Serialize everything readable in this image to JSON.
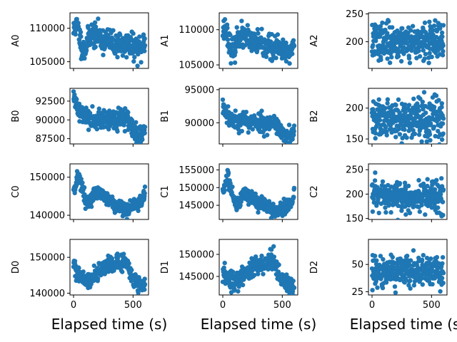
{
  "colors": {
    "marker": "#1f77b4",
    "axes": "#000000",
    "background": "#ffffff"
  },
  "chart_data": [
    {
      "type": "scatter",
      "ylabel": "A0",
      "yticks": [
        105000,
        110000
      ],
      "ylim": [
        104000,
        112300
      ],
      "xlim": [
        -30,
        630
      ],
      "profile": [
        [
          0,
          109500
        ],
        [
          20,
          110500
        ],
        [
          40,
          109800
        ],
        [
          60,
          108000
        ],
        [
          80,
          106500
        ],
        [
          100,
          107000
        ],
        [
          120,
          108200
        ],
        [
          150,
          109300
        ],
        [
          180,
          108700
        ],
        [
          210,
          109000
        ],
        [
          240,
          108200
        ],
        [
          270,
          108300
        ],
        [
          300,
          108000
        ],
        [
          330,
          107700
        ],
        [
          360,
          107600
        ],
        [
          390,
          107900
        ],
        [
          420,
          107000
        ],
        [
          450,
          107800
        ],
        [
          480,
          107300
        ],
        [
          510,
          107100
        ],
        [
          540,
          106900
        ],
        [
          570,
          106800
        ],
        [
          600,
          108300
        ]
      ],
      "noise": 900,
      "n": 300,
      "seed": 11
    },
    {
      "type": "scatter",
      "ylabel": "A1",
      "yticks": [
        105000,
        110000
      ],
      "ylim": [
        104500,
        112400
      ],
      "xlim": [
        -30,
        630
      ],
      "profile": [
        [
          0,
          110000
        ],
        [
          20,
          110200
        ],
        [
          40,
          109500
        ],
        [
          60,
          107800
        ],
        [
          80,
          106800
        ],
        [
          100,
          107200
        ],
        [
          120,
          108600
        ],
        [
          150,
          109500
        ],
        [
          180,
          108600
        ],
        [
          210,
          109000
        ],
        [
          240,
          108000
        ],
        [
          270,
          108200
        ],
        [
          300,
          108000
        ],
        [
          330,
          107600
        ],
        [
          360,
          107400
        ],
        [
          390,
          107800
        ],
        [
          420,
          107100
        ],
        [
          450,
          107600
        ],
        [
          480,
          107000
        ],
        [
          510,
          106800
        ],
        [
          540,
          106700
        ],
        [
          570,
          106900
        ],
        [
          600,
          108300
        ]
      ],
      "noise": 800,
      "n": 300,
      "seed": 23
    },
    {
      "type": "scatter",
      "ylabel": "A2",
      "yticks": [
        200,
        250
      ],
      "ylim": [
        152,
        252
      ],
      "xlim": [
        -30,
        630
      ],
      "profile": [
        [
          0,
          200
        ],
        [
          600,
          200
        ]
      ],
      "noise": 16,
      "n": 320,
      "seed": 37
    },
    {
      "type": "scatter",
      "ylabel": "B0",
      "yticks": [
        87500,
        90000,
        92500
      ],
      "ylim": [
        86800,
        94200
      ],
      "xlim": [
        -30,
        630
      ],
      "profile": [
        [
          0,
          92700
        ],
        [
          30,
          92000
        ],
        [
          60,
          91000
        ],
        [
          100,
          90500
        ],
        [
          150,
          90200
        ],
        [
          200,
          90300
        ],
        [
          250,
          90000
        ],
        [
          300,
          90100
        ],
        [
          350,
          89800
        ],
        [
          400,
          90000
        ],
        [
          450,
          90200
        ],
        [
          480,
          89500
        ],
        [
          510,
          88500
        ],
        [
          540,
          87800
        ],
        [
          570,
          88000
        ],
        [
          600,
          88800
        ]
      ],
      "noise": 650,
      "n": 300,
      "seed": 41
    },
    {
      "type": "scatter",
      "ylabel": "B1",
      "yticks": [
        90000,
        95000
      ],
      "ylim": [
        86800,
        95200
      ],
      "xlim": [
        -30,
        630
      ],
      "profile": [
        [
          0,
          92500
        ],
        [
          30,
          91800
        ],
        [
          60,
          90800
        ],
        [
          100,
          90300
        ],
        [
          150,
          90300
        ],
        [
          200,
          90200
        ],
        [
          250,
          90000
        ],
        [
          300,
          90200
        ],
        [
          350,
          89900
        ],
        [
          400,
          89900
        ],
        [
          450,
          90000
        ],
        [
          480,
          89000
        ],
        [
          510,
          88000
        ],
        [
          540,
          87700
        ],
        [
          570,
          87800
        ],
        [
          600,
          88600
        ]
      ],
      "noise": 700,
      "n": 300,
      "seed": 53
    },
    {
      "type": "scatter",
      "ylabel": "B2",
      "yticks": [
        150,
        200
      ],
      "ylim": [
        142,
        232
      ],
      "xlim": [
        -30,
        630
      ],
      "profile": [
        [
          0,
          182
        ],
        [
          600,
          184
        ]
      ],
      "noise": 17,
      "n": 320,
      "seed": 61
    },
    {
      "type": "scatter",
      "ylabel": "C0",
      "yticks": [
        140000,
        150000
      ],
      "ylim": [
        138900,
        153500
      ],
      "xlim": [
        -30,
        630
      ],
      "profile": [
        [
          0,
          147000
        ],
        [
          40,
          150000
        ],
        [
          70,
          148000
        ],
        [
          100,
          143500
        ],
        [
          130,
          143000
        ],
        [
          170,
          145500
        ],
        [
          200,
          146000
        ],
        [
          250,
          145000
        ],
        [
          300,
          144000
        ],
        [
          350,
          142800
        ],
        [
          400,
          142000
        ],
        [
          430,
          141500
        ],
        [
          450,
          141200
        ],
        [
          480,
          142000
        ],
        [
          510,
          143000
        ],
        [
          540,
          142800
        ],
        [
          570,
          143500
        ],
        [
          600,
          146000
        ]
      ],
      "noise": 1000,
      "n": 300,
      "seed": 71
    },
    {
      "type": "scatter",
      "ylabel": "C1",
      "yticks": [
        145000,
        150000,
        155000
      ],
      "ylim": [
        141000,
        156700
      ],
      "xlim": [
        -30,
        630
      ],
      "profile": [
        [
          0,
          149000
        ],
        [
          40,
          152500
        ],
        [
          70,
          149500
        ],
        [
          100,
          146000
        ],
        [
          130,
          145500
        ],
        [
          170,
          148500
        ],
        [
          200,
          148500
        ],
        [
          250,
          147000
        ],
        [
          300,
          145500
        ],
        [
          350,
          144800
        ],
        [
          400,
          144200
        ],
        [
          430,
          143800
        ],
        [
          450,
          143700
        ],
        [
          480,
          143900
        ],
        [
          510,
          144500
        ],
        [
          540,
          144500
        ],
        [
          570,
          145500
        ],
        [
          600,
          148000
        ]
      ],
      "noise": 1000,
      "n": 300,
      "seed": 83
    },
    {
      "type": "scatter",
      "ylabel": "C2",
      "yticks": [
        150,
        200,
        250
      ],
      "ylim": [
        148,
        262
      ],
      "xlim": [
        -30,
        630
      ],
      "profile": [
        [
          0,
          195
        ],
        [
          600,
          193
        ]
      ],
      "noise": 16,
      "n": 320,
      "seed": 97
    },
    {
      "type": "scatter",
      "ylabel": "D0",
      "yticks": [
        140000,
        150000
      ],
      "ylim": [
        139500,
        155000
      ],
      "xlim": [
        -30,
        630
      ],
      "profile": [
        [
          0,
          149000
        ],
        [
          20,
          146000
        ],
        [
          50,
          144500
        ],
        [
          100,
          143500
        ],
        [
          150,
          143800
        ],
        [
          180,
          145500
        ],
        [
          220,
          146500
        ],
        [
          260,
          147000
        ],
        [
          290,
          148500
        ],
        [
          320,
          147500
        ],
        [
          350,
          148000
        ],
        [
          400,
          148500
        ],
        [
          430,
          149000
        ],
        [
          460,
          147000
        ],
        [
          490,
          144500
        ],
        [
          520,
          143500
        ],
        [
          550,
          143000
        ],
        [
          580,
          142300
        ],
        [
          600,
          142000
        ]
      ],
      "noise": 1100,
      "n": 300,
      "seed": 101
    },
    {
      "type": "scatter",
      "ylabel": "D1",
      "yticks": [
        145000,
        150000
      ],
      "ylim": [
        140800,
        153400
      ],
      "xlim": [
        -30,
        630
      ],
      "profile": [
        [
          0,
          145500
        ],
        [
          40,
          144000
        ],
        [
          80,
          143500
        ],
        [
          130,
          144200
        ],
        [
          170,
          145500
        ],
        [
          220,
          146500
        ],
        [
          260,
          147000
        ],
        [
          290,
          148000
        ],
        [
          320,
          147000
        ],
        [
          360,
          148000
        ],
        [
          400,
          148500
        ],
        [
          430,
          148800
        ],
        [
          460,
          146500
        ],
        [
          490,
          144500
        ],
        [
          520,
          143800
        ],
        [
          560,
          143000
        ],
        [
          600,
          142500
        ]
      ],
      "noise": 1100,
      "n": 300,
      "seed": 113
    },
    {
      "type": "scatter",
      "ylabel": "D2",
      "yticks": [
        25,
        50
      ],
      "ylim": [
        22,
        73
      ],
      "xlim": [
        -30,
        630
      ],
      "profile": [
        [
          0,
          43
        ],
        [
          600,
          43
        ]
      ],
      "noise": 7,
      "n": 320,
      "seed": 127
    }
  ],
  "x_axis": {
    "ticks": [
      0,
      500
    ],
    "label": "Elapsed time (s)"
  }
}
